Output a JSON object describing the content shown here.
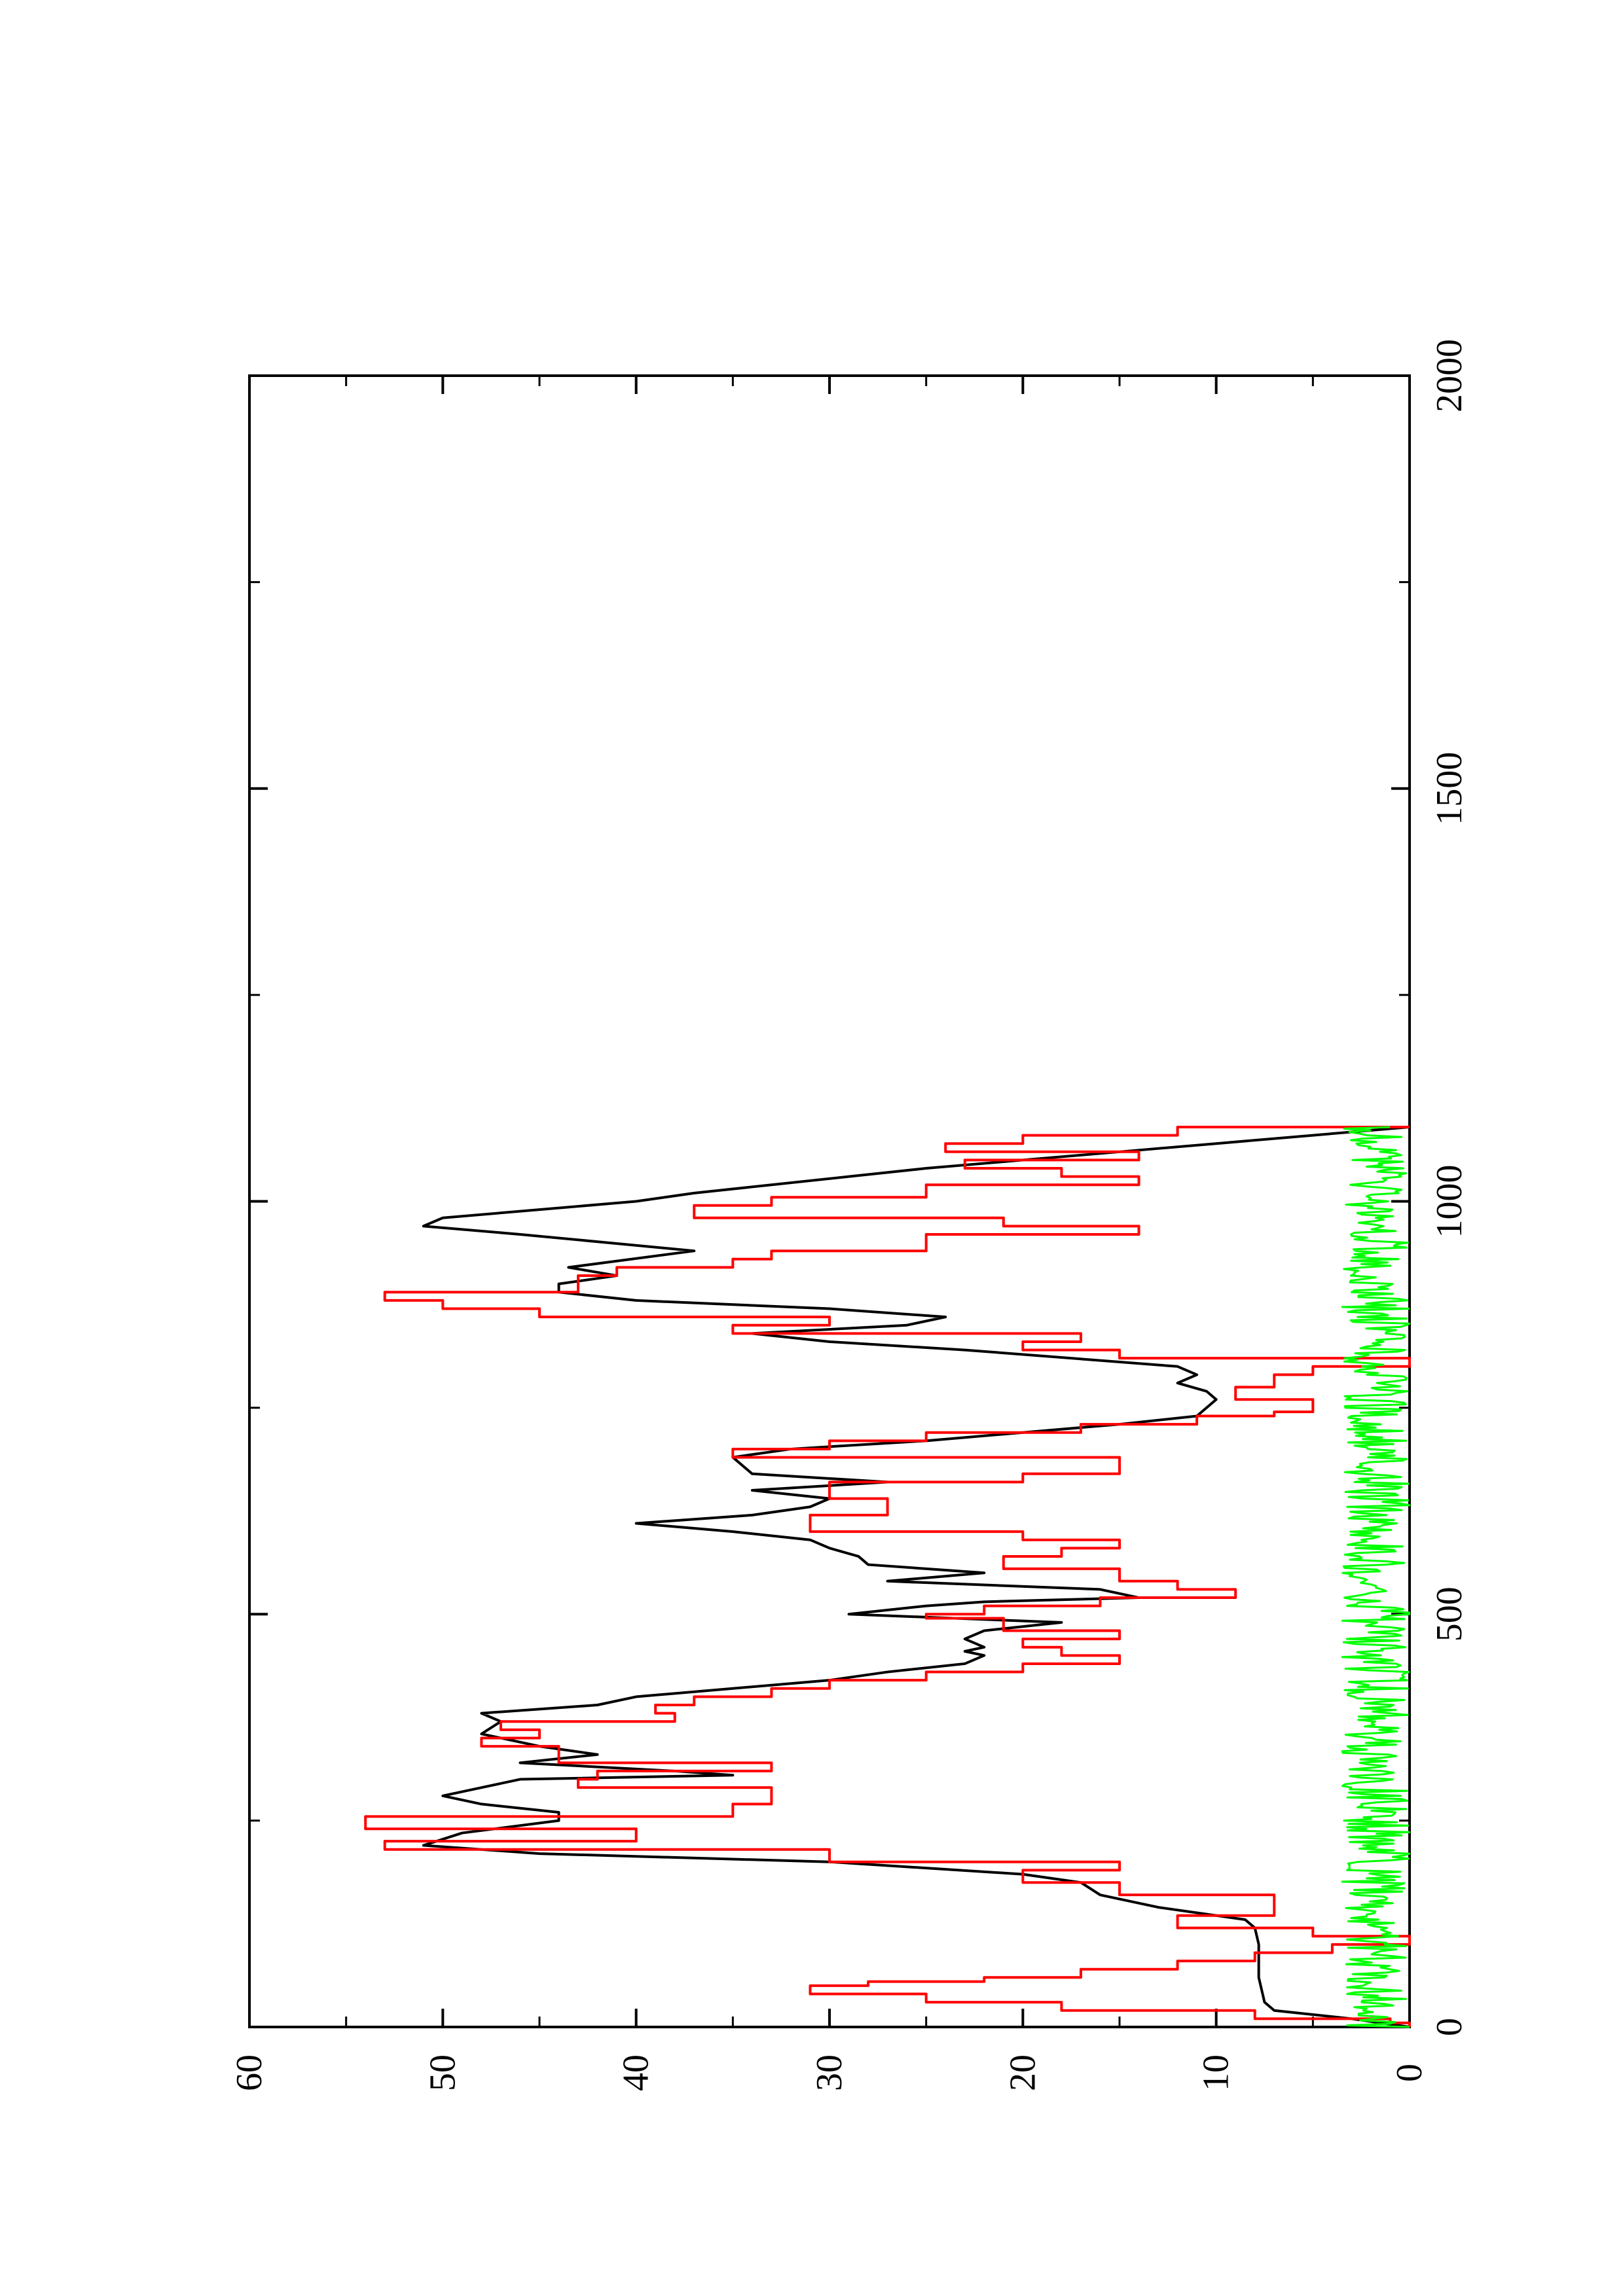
{
  "chart_data": {
    "type": "line",
    "orientation": "rotated-90-ccw",
    "title": "",
    "xlabel": "",
    "ylabel": "",
    "xlim": [
      0,
      2000
    ],
    "ylim": [
      0,
      60
    ],
    "x_ticks": [
      0,
      500,
      1000,
      1500,
      2000
    ],
    "x_tick_labels": [
      "0",
      "500",
      "1000",
      "1500",
      "2000"
    ],
    "y_ticks": [
      0,
      10,
      20,
      30,
      40,
      50,
      60
    ],
    "y_tick_labels": [
      "0",
      "10",
      "20",
      "30",
      "40",
      "50",
      "60"
    ],
    "grid": false,
    "legend": "none",
    "series": [
      {
        "color": "#000000",
        "style": "smooth",
        "points": [
          [
            0,
            0
          ],
          [
            10,
            3
          ],
          [
            20,
            7
          ],
          [
            30,
            7.5
          ],
          [
            60,
            7.8
          ],
          [
            100,
            7.8
          ],
          [
            120,
            8
          ],
          [
            130,
            8.5
          ],
          [
            145,
            13
          ],
          [
            160,
            16
          ],
          [
            175,
            17
          ],
          [
            185,
            20
          ],
          [
            200,
            30
          ],
          [
            210,
            45
          ],
          [
            220,
            51
          ],
          [
            235,
            49
          ],
          [
            250,
            44
          ],
          [
            260,
            44
          ],
          [
            270,
            48
          ],
          [
            280,
            50
          ],
          [
            290,
            48
          ],
          [
            300,
            46
          ],
          [
            305,
            35
          ],
          [
            310,
            38
          ],
          [
            320,
            46
          ],
          [
            330,
            42
          ],
          [
            340,
            45
          ],
          [
            355,
            48
          ],
          [
            370,
            47
          ],
          [
            380,
            48
          ],
          [
            390,
            42
          ],
          [
            400,
            40
          ],
          [
            410,
            35
          ],
          [
            420,
            30
          ],
          [
            430,
            27
          ],
          [
            440,
            23
          ],
          [
            450,
            22
          ],
          [
            455,
            23
          ],
          [
            460,
            22
          ],
          [
            470,
            23
          ],
          [
            480,
            22
          ],
          [
            490,
            18
          ],
          [
            500,
            29
          ],
          [
            510,
            25
          ],
          [
            515,
            22
          ],
          [
            520,
            14
          ],
          [
            530,
            16
          ],
          [
            540,
            27
          ],
          [
            550,
            22
          ],
          [
            560,
            28
          ],
          [
            570,
            28.5
          ],
          [
            580,
            30
          ],
          [
            590,
            31
          ],
          [
            600,
            35
          ],
          [
            610,
            40
          ],
          [
            620,
            34
          ],
          [
            630,
            31
          ],
          [
            640,
            30
          ],
          [
            650,
            34
          ],
          [
            660,
            27
          ],
          [
            670,
            34
          ],
          [
            690,
            35
          ],
          [
            700,
            32
          ],
          [
            710,
            25
          ],
          [
            730,
            15
          ],
          [
            740,
            11
          ],
          [
            760,
            10
          ],
          [
            770,
            10.5
          ],
          [
            780,
            12
          ],
          [
            790,
            11
          ],
          [
            800,
            12
          ],
          [
            820,
            23
          ],
          [
            830,
            30
          ],
          [
            840,
            34
          ],
          [
            850,
            26
          ],
          [
            860,
            24
          ],
          [
            870,
            30
          ],
          [
            880,
            40
          ],
          [
            890,
            44
          ],
          [
            900,
            44
          ],
          [
            910,
            41
          ],
          [
            920,
            43.5
          ],
          [
            940,
            37
          ],
          [
            960,
            46
          ],
          [
            970,
            51
          ],
          [
            980,
            50
          ],
          [
            990,
            45
          ],
          [
            1000,
            40
          ],
          [
            1010,
            37
          ],
          [
            1020,
            33
          ],
          [
            1030,
            29
          ],
          [
            1040,
            25
          ],
          [
            1050,
            20
          ],
          [
            1060,
            15
          ],
          [
            1070,
            10
          ],
          [
            1080,
            5
          ],
          [
            1090,
            0
          ]
        ]
      },
      {
        "color": "#ff0000",
        "style": "step",
        "points": [
          [
            0,
            0
          ],
          [
            5,
            1
          ],
          [
            10,
            8
          ],
          [
            20,
            18
          ],
          [
            30,
            25
          ],
          [
            40,
            31
          ],
          [
            50,
            28
          ],
          [
            55,
            22
          ],
          [
            60,
            17
          ],
          [
            70,
            12
          ],
          [
            80,
            8
          ],
          [
            90,
            4
          ],
          [
            100,
            0
          ],
          [
            110,
            5
          ],
          [
            120,
            12
          ],
          [
            135,
            7
          ],
          [
            150,
            7
          ],
          [
            160,
            15
          ],
          [
            175,
            20
          ],
          [
            190,
            15
          ],
          [
            200,
            30
          ],
          [
            215,
            53
          ],
          [
            225,
            40
          ],
          [
            240,
            54
          ],
          [
            255,
            35
          ],
          [
            270,
            33
          ],
          [
            290,
            43
          ],
          [
            300,
            42
          ],
          [
            310,
            33
          ],
          [
            320,
            44
          ],
          [
            340,
            48
          ],
          [
            350,
            45
          ],
          [
            360,
            47
          ],
          [
            370,
            38
          ],
          [
            380,
            39
          ],
          [
            390,
            37
          ],
          [
            400,
            33
          ],
          [
            410,
            30
          ],
          [
            420,
            25
          ],
          [
            430,
            20
          ],
          [
            440,
            15
          ],
          [
            450,
            18
          ],
          [
            460,
            20
          ],
          [
            470,
            15
          ],
          [
            480,
            21
          ],
          [
            495,
            25
          ],
          [
            500,
            22
          ],
          [
            510,
            16
          ],
          [
            520,
            9
          ],
          [
            530,
            12
          ],
          [
            540,
            15
          ],
          [
            555,
            21
          ],
          [
            570,
            18
          ],
          [
            580,
            15
          ],
          [
            590,
            20
          ],
          [
            600,
            31
          ],
          [
            620,
            27
          ],
          [
            640,
            30
          ],
          [
            660,
            20
          ],
          [
            670,
            15
          ],
          [
            690,
            35
          ],
          [
            700,
            30
          ],
          [
            710,
            25
          ],
          [
            720,
            17
          ],
          [
            730,
            11
          ],
          [
            740,
            7
          ],
          [
            745,
            5
          ],
          [
            760,
            9
          ],
          [
            775,
            7
          ],
          [
            790,
            5
          ],
          [
            800,
            0
          ],
          [
            810,
            15
          ],
          [
            820,
            20
          ],
          [
            830,
            17
          ],
          [
            840,
            35
          ],
          [
            850,
            30
          ],
          [
            860,
            45
          ],
          [
            870,
            50
          ],
          [
            880,
            53
          ],
          [
            890,
            43
          ],
          [
            910,
            41
          ],
          [
            920,
            35
          ],
          [
            930,
            33
          ],
          [
            940,
            25
          ],
          [
            960,
            14
          ],
          [
            970,
            21
          ],
          [
            980,
            37
          ],
          [
            995,
            33
          ],
          [
            1005,
            25
          ],
          [
            1020,
            14
          ],
          [
            1030,
            18
          ],
          [
            1040,
            23
          ],
          [
            1050,
            14
          ],
          [
            1060,
            24
          ],
          [
            1070,
            20
          ],
          [
            1080,
            12
          ],
          [
            1090,
            0
          ]
        ]
      },
      {
        "color": "#00ff00",
        "style": "noise",
        "amplitude": [
          0,
          3.5
        ],
        "range": [
          0,
          1090
        ]
      }
    ]
  }
}
